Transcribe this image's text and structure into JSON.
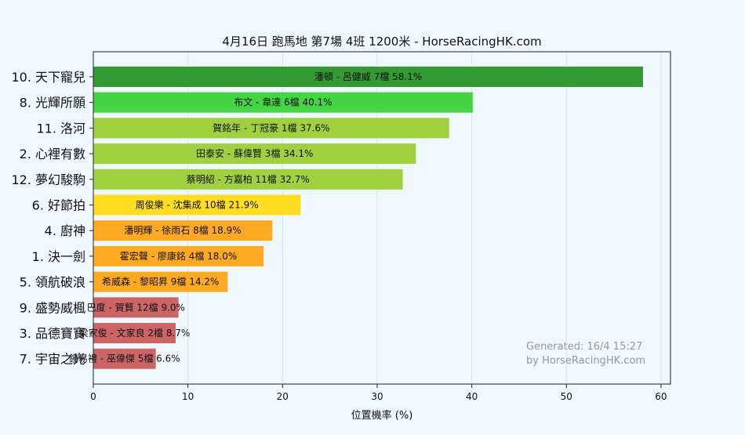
{
  "chart_data": {
    "type": "bar",
    "orientation": "horizontal",
    "title": "4月16日  跑馬地  第7場  4班  1200米 - HorseRacingHK.com",
    "xlabel": "位置機率 (%)",
    "ylabel": "",
    "xlim": [
      0,
      61
    ],
    "xticks": [
      0,
      10,
      20,
      30,
      40,
      50,
      60
    ],
    "grid": true,
    "categories": [
      "10. 天下寵兒",
      "8. 光輝所願",
      "11. 洛河",
      "2. 心裡有數",
      "12. 夢幻駿駒",
      "6. 好節拍",
      "4. 廚神",
      "1. 決一劍",
      "5. 領航破浪",
      "9. 盛勢威楓",
      "3. 品德寶寶",
      "7. 宇宙之光"
    ],
    "values": [
      58.1,
      40.1,
      37.6,
      34.1,
      32.7,
      21.9,
      18.9,
      18.0,
      14.2,
      9.0,
      8.7,
      6.6
    ],
    "bar_labels": [
      "潘頓 - 呂健威 7檔  58.1%",
      "布文 - 韋達 6檔  40.1%",
      "賀銘年 - 丁冠豪 1檔  37.6%",
      "田泰安 - 蘇偉賢 3檔  34.1%",
      "蔡明紹 - 方嘉柏 11檔  32.7%",
      "周俊樂 - 沈集成 10檔  21.9%",
      "潘明輝 - 徐雨石 8檔  18.9%",
      "霍宏聲 - 廖康銘 4檔  18.0%",
      "希威森 - 黎昭昇 9檔  14.2%",
      "巴度 - 賀賢 12檔  9.0%",
      "梁家俊 - 文家良 2檔  8.7%",
      "鍾易禮 - 巫偉傑 5檔  6.6%"
    ],
    "colors": [
      "#339933",
      "#44d444",
      "#a0d040",
      "#a0d040",
      "#a0d040",
      "#ffdd22",
      "#ffaa22",
      "#ffaa22",
      "#ffaa22",
      "#cc6666",
      "#cc6666",
      "#cc6666"
    ],
    "annotation": [
      "Generated: 16/4 15:27",
      "by HorseRacingHK.com"
    ]
  }
}
